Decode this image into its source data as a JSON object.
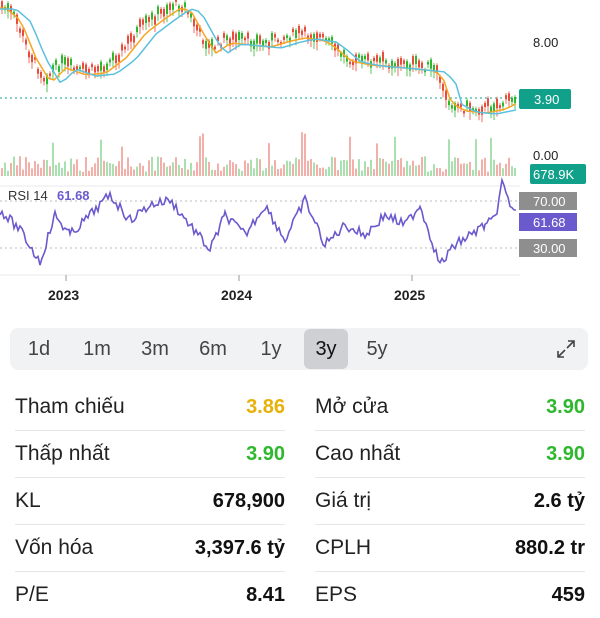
{
  "chart": {
    "price_ticks": [
      "8.00",
      "0.00"
    ],
    "price_badge": "3.90",
    "volume_badge": "678.9K",
    "rsi_label": "RSI 14",
    "rsi_value": "61.68",
    "rsi_levels": [
      "70.00",
      "61.68",
      "30.00"
    ],
    "years": [
      "2023",
      "2024",
      "2025"
    ],
    "colors": {
      "accent": "#11a08a",
      "rsi": "#6a5acd",
      "up": "#2eb82e",
      "down": "#e74c3c"
    }
  },
  "periods": {
    "items": [
      "1d",
      "1m",
      "3m",
      "6m",
      "1y",
      "3y",
      "5y"
    ],
    "active": "3y"
  },
  "stats": {
    "rows": [
      {
        "left_label": "Tham chiếu",
        "left_value": "3.86",
        "right_label": "Mở cửa",
        "right_value": "3.90"
      },
      {
        "left_label": "Thấp nhất",
        "left_value": "3.90",
        "right_label": "Cao nhất",
        "right_value": "3.90"
      },
      {
        "left_label": "KL",
        "left_value": "678,900",
        "right_label": "Giá trị",
        "right_value": "2.6 tỷ"
      },
      {
        "left_label": "Vốn hóa",
        "left_value": "3,397.6 tỷ",
        "right_label": "CPLH",
        "right_value": "880.2 tr"
      },
      {
        "left_label": "P/E",
        "left_value": "8.41",
        "right_label": "EPS",
        "right_value": "459"
      }
    ]
  }
}
